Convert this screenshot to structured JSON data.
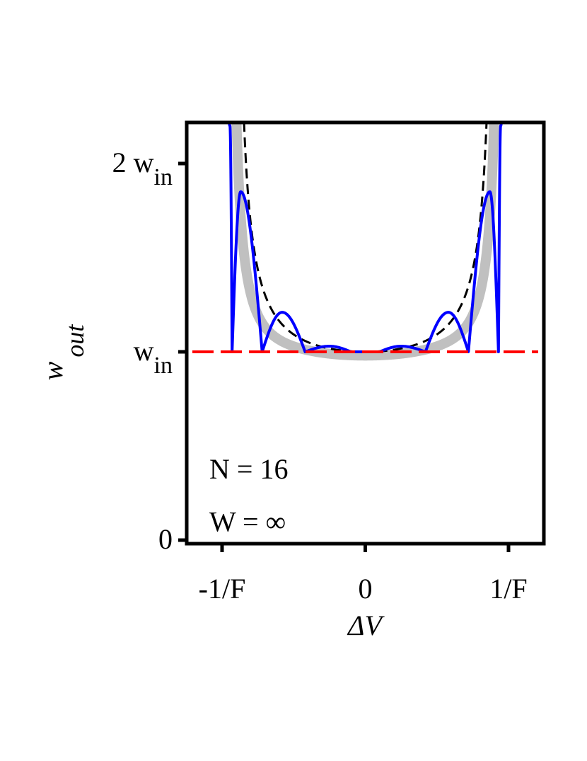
{
  "chart_data": {
    "type": "line",
    "xlabel": "ΔV",
    "ylabel": {
      "base": "w",
      "sub": "out"
    },
    "xlim": [
      -1.25,
      1.25
    ],
    "ylim": [
      0,
      2.2
    ],
    "x_ticks": [
      {
        "value": -1,
        "label": "-1/F"
      },
      {
        "value": 0,
        "label": "0"
      },
      {
        "value": 1,
        "label": "1/F"
      }
    ],
    "y_ticks": [
      {
        "value": 0,
        "label": "0",
        "sub": ""
      },
      {
        "value": 1,
        "label": "w",
        "sub": "in"
      },
      {
        "value": 2,
        "label": "2 w",
        "sub": "in"
      }
    ],
    "annotations": [
      {
        "text": "N = 16",
        "x": -1.0,
        "y": 0.38
      },
      {
        "text": "W = ∞",
        "x": -1.0,
        "y": 0.1
      }
    ],
    "series": [
      {
        "style": "gray-thick",
        "color": "#c0c0c0",
        "kind": "envelope",
        "x_edge": 0.95,
        "y_min": 0.98
      },
      {
        "style": "black-dashed",
        "color": "#000000",
        "kind": "inverse",
        "x_edge": 0.92,
        "y_min": 1.0
      },
      {
        "style": "blue-solid",
        "color": "#0000ff",
        "kind": "oscillating",
        "x_edge": 0.95,
        "y_min": 1.0,
        "peaks": [
          {
            "x": -0.87,
            "y": 1.85
          },
          {
            "x": -0.58,
            "y": 1.21
          },
          {
            "x": -0.25,
            "y": 1.03
          },
          {
            "x": 0.25,
            "y": 1.03
          },
          {
            "x": 0.58,
            "y": 1.21
          },
          {
            "x": 0.87,
            "y": 1.85
          }
        ],
        "zeros": [
          -0.93,
          -0.72,
          -0.42,
          0.42,
          0.72,
          0.93
        ]
      },
      {
        "style": "red-dashed",
        "color": "#ff0000",
        "kind": "constant",
        "y": 1.0
      }
    ]
  }
}
